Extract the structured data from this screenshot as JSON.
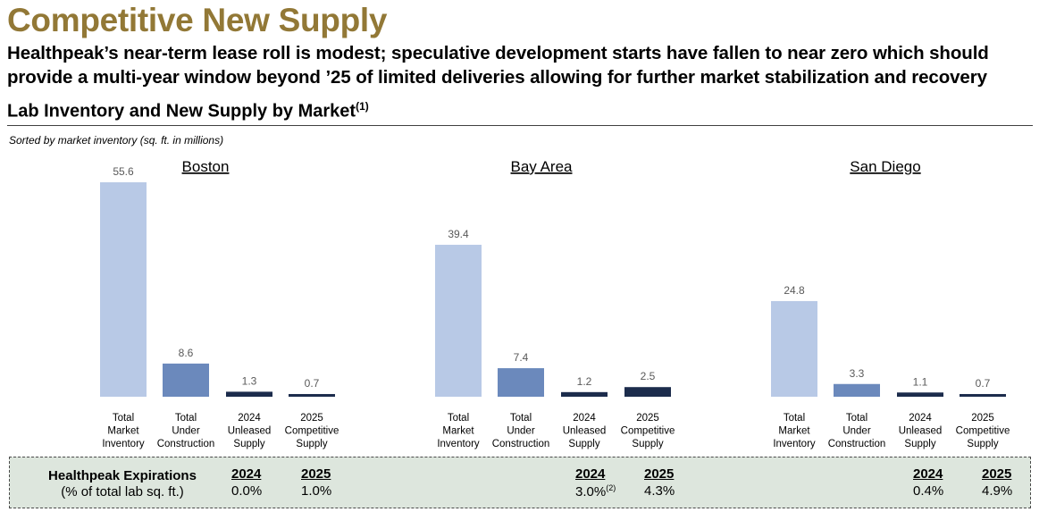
{
  "header": {
    "title": "Competitive New Supply",
    "subtitle": "Healthpeak’s near-term lease roll is modest; speculative development starts have fallen to near zero which should provide a multi-year window beyond ’25 of limited deliveries allowing for further market stabilization and recovery",
    "section_title": "Lab Inventory and New Supply by Market",
    "section_footnote": "(1)",
    "note": "Sorted by market inventory (sq. ft. in millions)"
  },
  "colors": {
    "title": "#927836",
    "total_market_inventory": "#b8c9e6",
    "total_under_construction": "#6b89bc",
    "dark_series": "#1c2c4c",
    "footer_bg": "#dde6dd"
  },
  "chart_data": [
    {
      "type": "bar",
      "title": "Boston",
      "categories": [
        "Total Market Inventory",
        "Total Under Construction",
        "2024 Unleased Supply",
        "2025 Competitive Supply"
      ],
      "values": [
        55.6,
        8.6,
        1.3,
        0.7
      ],
      "ylim": [
        0,
        55.6
      ],
      "grid": false
    },
    {
      "type": "bar",
      "title": "Bay Area",
      "categories": [
        "Total Market Inventory",
        "Total Under Construction",
        "2024 Unleased Supply",
        "2025 Competitive Supply"
      ],
      "values": [
        39.4,
        7.4,
        1.2,
        2.5
      ],
      "ylim": [
        0,
        55.6
      ],
      "grid": false
    },
    {
      "type": "bar",
      "title": "San Diego",
      "categories": [
        "Total Market Inventory",
        "Total Under Construction",
        "2024 Unleased Supply",
        "2025 Competitive Supply"
      ],
      "values": [
        24.8,
        3.3,
        1.1,
        0.7
      ],
      "ylim": [
        0,
        55.6
      ],
      "grid": false
    }
  ],
  "footer": {
    "title": "Healthpeak Expirations",
    "subtitle": "(% of total lab sq. ft.)",
    "year_2024": "2024",
    "year_2025": "2025",
    "markets": [
      {
        "v2024": "0.0%",
        "v2024_note": "",
        "v2025": "1.0%"
      },
      {
        "v2024": "3.0%",
        "v2024_note": "(2)",
        "v2025": "4.3%"
      },
      {
        "v2024": "0.4%",
        "v2024_note": "",
        "v2025": "4.9%"
      }
    ]
  }
}
